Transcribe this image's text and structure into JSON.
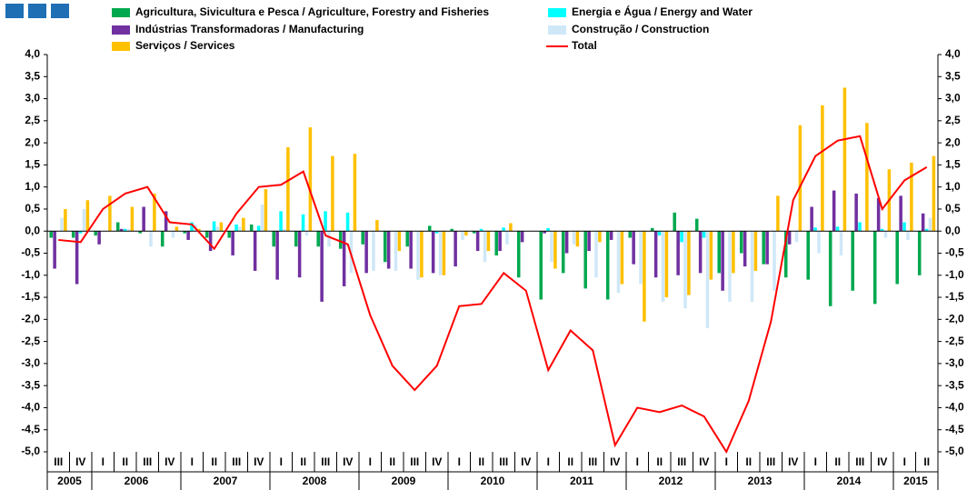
{
  "chart_data": {
    "type": "bar",
    "categories": [
      "III",
      "IV",
      "I",
      "II",
      "III",
      "IV",
      "I",
      "II",
      "III",
      "IV",
      "I",
      "II",
      "III",
      "IV",
      "I",
      "II",
      "III",
      "IV",
      "I",
      "II",
      "III",
      "IV",
      "I",
      "II",
      "III",
      "IV",
      "I",
      "II",
      "III",
      "IV",
      "I",
      "II",
      "III",
      "IV",
      "I",
      "II",
      "III",
      "IV",
      "I",
      "II"
    ],
    "years": [
      "2005",
      "2006",
      "2007",
      "2008",
      "2009",
      "2010",
      "2011",
      "2012",
      "2013",
      "2014",
      "2015"
    ],
    "series": [
      {
        "name": "Agricultura, Sivicultura e Pesca / Agriculture, Forestry and Fisheries",
        "color": "#00a84f",
        "values": [
          -0.15,
          -0.15,
          -0.1,
          0.2,
          -0.05,
          -0.35,
          -0.05,
          -0.15,
          -0.15,
          0.15,
          -0.35,
          -0.35,
          -0.35,
          -0.4,
          -0.3,
          -0.7,
          -0.35,
          0.12,
          0.05,
          -0.05,
          -0.55,
          -1.05,
          -1.55,
          -0.95,
          -1.3,
          -1.55,
          -0.15,
          0.07,
          0.42,
          0.28,
          -0.95,
          -0.5,
          -0.75,
          -1.05,
          -1.1,
          -1.7,
          -1.35,
          -1.65,
          -1.2,
          -1.0
        ]
      },
      {
        "name": "Indústrias Transformadoras / Manufacturing",
        "color": "#7030a0",
        "values": [
          -0.85,
          -1.2,
          -0.3,
          0.05,
          0.55,
          0.45,
          -0.2,
          -0.45,
          -0.55,
          -0.9,
          -1.1,
          -1.05,
          -1.6,
          -1.25,
          -0.95,
          -0.85,
          -0.85,
          -0.95,
          -0.8,
          -0.45,
          -0.45,
          -0.25,
          -0.05,
          -0.5,
          -0.45,
          -0.2,
          -0.75,
          -1.05,
          -1.0,
          -0.95,
          -1.35,
          -0.8,
          -0.75,
          -0.3,
          0.55,
          0.92,
          0.85,
          0.75,
          0.8,
          0.4
        ]
      },
      {
        "name": "Energia e Água / Energy and Water",
        "color": "#00ffff",
        "values": [
          0.0,
          -0.05,
          0.0,
          0.05,
          0.0,
          0.0,
          0.2,
          0.22,
          0.15,
          0.12,
          0.45,
          0.38,
          0.45,
          0.42,
          0.0,
          0.0,
          0.0,
          -0.05,
          0.0,
          0.05,
          0.08,
          0.0,
          0.07,
          0.0,
          0.0,
          0.0,
          0.0,
          -0.1,
          -0.25,
          -0.15,
          0.0,
          0.0,
          0.0,
          0.0,
          0.08,
          0.1,
          0.2,
          0.05,
          0.2,
          0.05
        ]
      },
      {
        "name": "Construção / Construction",
        "color": "#cfe8f8",
        "values": [
          0.3,
          0.5,
          0.0,
          0.05,
          -0.35,
          -0.15,
          0.15,
          0.1,
          0.1,
          0.6,
          0.05,
          -0.1,
          -0.35,
          -0.95,
          -0.9,
          -0.9,
          -1.1,
          -1.0,
          -0.2,
          -0.7,
          -0.3,
          0.0,
          -0.7,
          -0.3,
          -1.05,
          -1.4,
          -1.2,
          -1.6,
          -1.75,
          -2.2,
          -1.6,
          -1.6,
          -1.35,
          -0.25,
          -0.5,
          -0.55,
          0.0,
          -0.15,
          -0.2,
          0.3
        ]
      },
      {
        "name": "Serviços / Services",
        "color": "#ffc000",
        "values": [
          0.5,
          0.7,
          0.8,
          0.55,
          0.85,
          0.1,
          0.05,
          0.2,
          0.3,
          0.95,
          1.9,
          2.35,
          1.7,
          1.75,
          0.25,
          -0.45,
          -1.05,
          -1.0,
          -0.1,
          -0.45,
          0.18,
          0.0,
          -0.85,
          -0.35,
          -0.25,
          -1.2,
          -2.05,
          -1.5,
          -1.45,
          -1.1,
          -0.95,
          -0.9,
          0.8,
          2.4,
          2.85,
          3.25,
          2.45,
          1.4,
          1.55,
          1.7
        ]
      },
      {
        "name": "Total",
        "color": "#ff0000",
        "type": "line",
        "values": [
          -0.2,
          -0.25,
          0.5,
          0.85,
          1.0,
          0.2,
          0.15,
          -0.4,
          0.4,
          1.0,
          1.05,
          1.35,
          -0.1,
          -0.3,
          -1.9,
          -3.05,
          -3.6,
          -3.05,
          -1.7,
          -1.65,
          -0.95,
          -1.35,
          -3.15,
          -2.25,
          -2.7,
          -4.85,
          -4.0,
          -4.1,
          -3.95,
          -4.2,
          -5.0,
          -3.85,
          -2.05,
          0.7,
          1.7,
          2.05,
          2.15,
          0.5,
          1.15,
          1.45
        ]
      }
    ],
    "ylim": [
      -5,
      4
    ],
    "yticks": [
      {
        "value": -5,
        "label": "-5,0"
      },
      {
        "value": -4.5,
        "label": "-4,5"
      },
      {
        "value": -4,
        "label": "-4,0"
      },
      {
        "value": -3.5,
        "label": "-3,5"
      },
      {
        "value": -3,
        "label": "-3,0"
      },
      {
        "value": -2.5,
        "label": "-2,5"
      },
      {
        "value": -2,
        "label": "-2,0"
      },
      {
        "value": -1.5,
        "label": "-1,5"
      },
      {
        "value": -1,
        "label": "-1,0"
      },
      {
        "value": -0.5,
        "label": "-0,5"
      },
      {
        "value": 0,
        "label": "0,0"
      },
      {
        "value": 0.5,
        "label": "0,5"
      },
      {
        "value": 1,
        "label": "1,0"
      },
      {
        "value": 1.5,
        "label": "1,5"
      },
      {
        "value": 2,
        "label": "2,0"
      },
      {
        "value": 2.5,
        "label": "2,5"
      },
      {
        "value": 3,
        "label": "3,0"
      },
      {
        "value": 3.5,
        "label": "3,5"
      },
      {
        "value": 4,
        "label": "4,0"
      }
    ],
    "y2lim": [
      -5,
      4
    ],
    "y2ticks": [
      {
        "value": -5,
        "label": "-5,0"
      },
      {
        "value": -4.5,
        "label": "-4,5"
      },
      {
        "value": -4,
        "label": "-4,0"
      },
      {
        "value": -3.5,
        "label": "-3,5"
      },
      {
        "value": -3,
        "label": "-3,0"
      },
      {
        "value": -2.5,
        "label": "-2,5"
      },
      {
        "value": -2,
        "label": "-2,0"
      },
      {
        "value": -1.5,
        "label": "-1,5"
      },
      {
        "value": -1,
        "label": "-1,0"
      },
      {
        "value": -0.5,
        "label": "-0,5"
      },
      {
        "value": 0,
        "label": "0,0"
      },
      {
        "value": 0.5,
        "label": "0,5"
      },
      {
        "value": 1,
        "label": "1,0"
      },
      {
        "value": 1.5,
        "label": "1,5"
      },
      {
        "value": 2,
        "label": "2,0"
      },
      {
        "value": 2.5,
        "label": "2,5"
      },
      {
        "value": 3,
        "label": "3,0"
      },
      {
        "value": 3.5,
        "label": "3,5"
      },
      {
        "value": 4,
        "label": "4,0"
      }
    ]
  }
}
